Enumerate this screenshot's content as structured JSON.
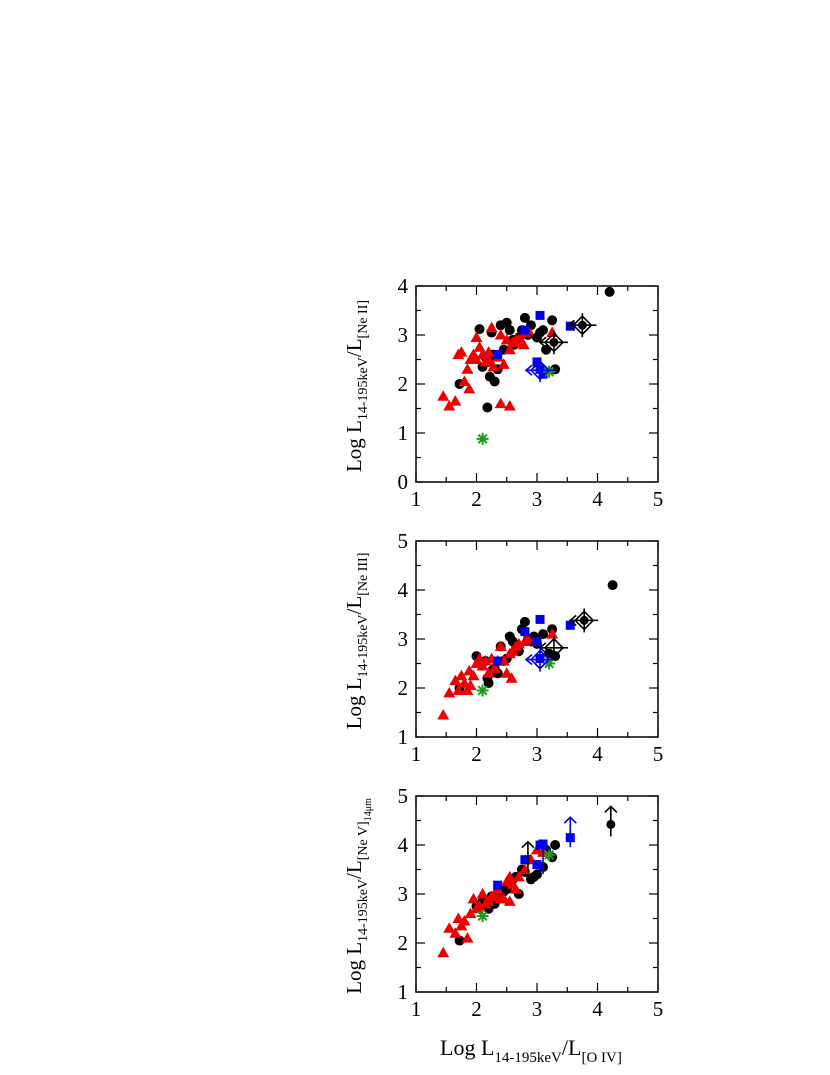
{
  "figure": {
    "xlabel_main": "Log L",
    "xlabel_sub": "14-195keV",
    "xlabel_mid": "/L",
    "xlabel_sub2": "[O IV]"
  },
  "colors": {
    "circle": "#000000",
    "triangle": "#ee0000",
    "square": "#0000ee",
    "star": "#1a9a1a",
    "limit_black": "#000000",
    "limit_blue": "#0000ee"
  },
  "chart_data": [
    {
      "type": "scatter",
      "panel": "top",
      "xlim": [
        1,
        5
      ],
      "ylim": [
        0,
        4
      ],
      "xticks": [
        "1",
        "2",
        "3",
        "4",
        "5"
      ],
      "yticks": [
        "0",
        "1",
        "2",
        "3",
        "4"
      ],
      "ylabel_main": "Log L",
      "ylabel_sub": "14-195keV",
      "ylabel_mid": "/L",
      "ylabel_sub2": "[Ne II]",
      "series": [
        {
          "marker": "circle",
          "x": [
            1.72,
            2.05,
            2.15,
            2.22,
            2.3,
            2.18,
            2.25,
            2.35,
            2.4,
            2.5,
            2.55,
            2.6,
            2.7,
            2.8,
            2.85,
            2.9,
            3.0,
            3.05,
            3.15,
            3.25,
            3.3,
            2.1,
            2.2,
            2.28,
            2.45,
            2.62,
            2.75,
            3.1,
            4.2
          ],
          "y": [
            2.0,
            3.12,
            2.55,
            2.15,
            2.05,
            1.52,
            3.05,
            2.3,
            3.2,
            3.25,
            3.1,
            2.9,
            2.95,
            3.35,
            3.0,
            3.2,
            2.95,
            3.05,
            2.7,
            3.3,
            2.3,
            2.35,
            2.45,
            2.6,
            2.7,
            2.8,
            3.1,
            3.1,
            3.88
          ]
        },
        {
          "marker": "triangle",
          "x": [
            1.45,
            1.55,
            1.65,
            1.75,
            1.8,
            1.88,
            1.9,
            1.95,
            2.0,
            2.05,
            2.1,
            2.15,
            2.2,
            2.28,
            2.35,
            2.4,
            2.45,
            2.55,
            2.6,
            2.7,
            2.75,
            2.8,
            2.85,
            1.7,
            1.85,
            2.0,
            2.2,
            2.25,
            2.4,
            2.5,
            2.65,
            2.78,
            3.25,
            2.55
          ],
          "y": [
            1.75,
            1.55,
            1.65,
            2.65,
            2.05,
            1.9,
            2.5,
            2.6,
            2.5,
            2.75,
            2.6,
            2.45,
            2.5,
            2.35,
            2.55,
            1.6,
            2.4,
            2.7,
            2.85,
            2.9,
            2.85,
            3.05,
            3.1,
            2.6,
            2.3,
            2.95,
            2.65,
            3.15,
            3.0,
            2.9,
            2.9,
            2.8,
            3.05,
            1.55
          ]
        },
        {
          "marker": "square",
          "x": [
            2.35,
            2.8,
            3.05,
            3.0,
            3.05,
            3.1,
            3.55
          ],
          "y": [
            2.6,
            3.1,
            3.4,
            2.45,
            2.3,
            2.2,
            3.18
          ]
        },
        {
          "marker": "star",
          "x": [
            2.1,
            3.2
          ],
          "y": [
            0.88,
            2.25
          ]
        }
      ],
      "limits": [
        {
          "color": "black",
          "x": 3.75,
          "y": 3.2,
          "direction": "left",
          "has_marker": true
        },
        {
          "color": "black",
          "x": 3.28,
          "y": 2.85,
          "direction": "left",
          "has_marker": true
        },
        {
          "color": "blue",
          "x": 3.05,
          "y": 2.28,
          "direction": "left",
          "has_marker": false
        }
      ]
    },
    {
      "type": "scatter",
      "panel": "middle",
      "xlim": [
        1,
        5
      ],
      "ylim": [
        1,
        5
      ],
      "xticks": [
        "1",
        "2",
        "3",
        "4",
        "5"
      ],
      "yticks": [
        "1",
        "2",
        "3",
        "4",
        "5"
      ],
      "ylabel_main": "Log L",
      "ylabel_sub": "14-195keV",
      "ylabel_mid": "/L",
      "ylabel_sub2": "[Ne III]",
      "series": [
        {
          "marker": "circle",
          "x": [
            1.72,
            2.0,
            2.15,
            2.2,
            2.25,
            2.3,
            2.35,
            2.4,
            2.5,
            2.55,
            2.6,
            2.7,
            2.75,
            2.8,
            2.85,
            2.9,
            3.0,
            3.1,
            3.2,
            3.3,
            2.45,
            2.65,
            2.05,
            2.18,
            2.95,
            3.25,
            4.25
          ],
          "y": [
            2.0,
            2.65,
            2.55,
            2.1,
            2.35,
            2.4,
            2.3,
            2.85,
            2.6,
            3.05,
            2.95,
            2.75,
            3.2,
            3.35,
            3.0,
            2.95,
            2.9,
            3.1,
            2.7,
            2.65,
            2.55,
            2.8,
            2.5,
            2.2,
            3.05,
            3.2,
            4.1
          ]
        },
        {
          "marker": "triangle",
          "x": [
            1.45,
            1.55,
            1.65,
            1.7,
            1.8,
            1.85,
            1.9,
            1.95,
            2.0,
            2.1,
            2.15,
            2.2,
            2.25,
            2.3,
            2.35,
            2.45,
            2.5,
            2.55,
            2.6,
            2.7,
            2.8,
            2.85,
            1.75,
            1.88,
            2.05,
            2.4,
            2.65,
            3.25,
            2.58
          ],
          "y": [
            1.45,
            1.9,
            2.15,
            1.95,
            2.1,
            1.95,
            2.05,
            2.25,
            2.5,
            2.45,
            2.55,
            2.3,
            2.6,
            2.4,
            2.55,
            2.55,
            2.3,
            2.7,
            2.75,
            2.9,
            2.95,
            3.0,
            2.25,
            2.35,
            2.6,
            2.85,
            2.85,
            3.1,
            2.2
          ]
        },
        {
          "marker": "square",
          "x": [
            2.35,
            2.8,
            3.05,
            3.0,
            3.05,
            3.55
          ],
          "y": [
            2.55,
            3.15,
            3.4,
            2.95,
            2.6,
            3.28
          ]
        },
        {
          "marker": "star",
          "x": [
            2.1,
            3.2
          ],
          "y": [
            1.95,
            2.5
          ]
        }
      ],
      "limits": [
        {
          "color": "black",
          "x": 3.78,
          "y": 3.38,
          "direction": "left",
          "has_marker": true
        },
        {
          "color": "black",
          "x": 3.28,
          "y": 2.82,
          "direction": "left",
          "has_marker": false
        },
        {
          "color": "blue",
          "x": 3.05,
          "y": 2.58,
          "direction": "left",
          "has_marker": false
        }
      ]
    },
    {
      "type": "scatter",
      "panel": "bottom",
      "xlim": [
        1,
        5
      ],
      "ylim": [
        1,
        5
      ],
      "xticks": [
        "1",
        "2",
        "3",
        "4",
        "5"
      ],
      "yticks": [
        "1",
        "2",
        "3",
        "4",
        "5"
      ],
      "ylabel_main": "Log L",
      "ylabel_sub": "14-195keV",
      "ylabel_mid": "/L",
      "ylabel_sub2": "[Ne V]",
      "ylabel_sub3": "14μm",
      "series": [
        {
          "marker": "circle",
          "x": [
            1.72,
            2.0,
            2.1,
            2.2,
            2.25,
            2.3,
            2.4,
            2.5,
            2.55,
            2.6,
            2.7,
            2.75,
            2.8,
            2.85,
            2.9,
            3.0,
            3.1,
            3.15,
            3.25,
            3.3,
            2.45,
            2.65,
            2.35,
            2.95
          ],
          "y": [
            2.05,
            2.75,
            2.85,
            2.7,
            2.95,
            2.8,
            3.0,
            3.1,
            3.2,
            3.3,
            3.0,
            3.5,
            3.45,
            3.7,
            3.3,
            3.4,
            3.55,
            3.9,
            3.75,
            4.0,
            3.05,
            3.35,
            2.9,
            3.35
          ]
        },
        {
          "marker": "triangle",
          "x": [
            1.45,
            1.55,
            1.65,
            1.7,
            1.75,
            1.85,
            1.9,
            1.95,
            2.0,
            2.05,
            2.1,
            2.2,
            2.25,
            2.3,
            2.35,
            2.45,
            2.5,
            2.55,
            2.6,
            2.65,
            2.7,
            2.8,
            2.9,
            3.0,
            3.1,
            1.8,
            2.15,
            2.4,
            2.55
          ],
          "y": [
            1.8,
            2.3,
            2.2,
            2.5,
            2.35,
            2.1,
            2.6,
            2.9,
            2.7,
            2.75,
            3.0,
            2.85,
            2.95,
            3.0,
            3.1,
            2.9,
            3.25,
            3.35,
            3.2,
            3.1,
            3.35,
            3.5,
            3.7,
            3.9,
            3.85,
            2.45,
            2.8,
            2.9,
            2.85
          ]
        },
        {
          "marker": "square",
          "x": [
            2.35,
            2.8,
            3.05,
            3.1,
            3.0,
            3.55
          ],
          "y": [
            3.18,
            3.7,
            4.0,
            4.02,
            3.6,
            4.15
          ]
        },
        {
          "marker": "star",
          "x": [
            2.1,
            3.2
          ],
          "y": [
            2.55,
            3.8
          ]
        }
      ],
      "limits": [
        {
          "color": "black",
          "x": 4.22,
          "y": 4.42,
          "direction": "up",
          "has_marker": true
        },
        {
          "color": "blue",
          "x": 3.55,
          "y": 4.2,
          "direction": "up",
          "has_marker": false
        },
        {
          "color": "black",
          "x": 2.85,
          "y": 3.7,
          "direction": "up",
          "has_marker": false
        },
        {
          "color": "blue",
          "x": 3.1,
          "y": 3.65,
          "direction": "up",
          "has_marker": false
        }
      ]
    }
  ]
}
